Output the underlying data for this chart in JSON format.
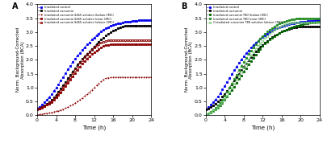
{
  "panel_A": {
    "title": "A",
    "series": [
      {
        "label": "Irradiated control",
        "color": "#0000EE",
        "marker": "s",
        "fillstyle": "full",
        "linestyle": "--",
        "x": [
          0,
          0.5,
          1,
          1.5,
          2,
          2.5,
          3,
          3.5,
          4,
          4.5,
          5,
          5.5,
          6,
          6.5,
          7,
          7.5,
          8,
          8.5,
          9,
          9.5,
          10,
          10.5,
          11,
          11.5,
          12,
          12.5,
          13,
          13.5,
          14,
          14.5,
          15,
          15.5,
          16,
          16.5,
          17,
          17.5,
          18,
          18.5,
          19,
          19.5,
          20,
          20.5,
          21,
          21.5,
          22,
          22.5,
          23,
          23.5,
          24
        ],
        "y": [
          0.25,
          0.3,
          0.38,
          0.46,
          0.55,
          0.65,
          0.75,
          0.87,
          1.0,
          1.12,
          1.25,
          1.38,
          1.52,
          1.65,
          1.78,
          1.92,
          2.05,
          2.15,
          2.25,
          2.35,
          2.45,
          2.55,
          2.63,
          2.72,
          2.8,
          2.88,
          2.95,
          3.02,
          3.08,
          3.14,
          3.18,
          3.22,
          3.26,
          3.28,
          3.3,
          3.32,
          3.34,
          3.36,
          3.37,
          3.38,
          3.4,
          3.4,
          3.41,
          3.42,
          3.42,
          3.43,
          3.43,
          3.43,
          3.44
        ]
      },
      {
        "label": "Irradiated curcumin",
        "color": "#000000",
        "marker": "s",
        "fillstyle": "full",
        "linestyle": "--",
        "x": [
          0,
          0.5,
          1,
          1.5,
          2,
          2.5,
          3,
          3.5,
          4,
          4.5,
          5,
          5.5,
          6,
          6.5,
          7,
          7.5,
          8,
          8.5,
          9,
          9.5,
          10,
          10.5,
          11,
          11.5,
          12,
          12.5,
          13,
          13.5,
          14,
          14.5,
          15,
          15.5,
          16,
          16.5,
          17,
          17.5,
          18,
          18.5,
          19,
          19.5,
          20,
          20.5,
          21,
          21.5,
          22,
          22.5,
          23,
          23.5,
          24
        ],
        "y": [
          0.22,
          0.25,
          0.29,
          0.34,
          0.4,
          0.47,
          0.55,
          0.64,
          0.74,
          0.85,
          0.97,
          1.09,
          1.2,
          1.33,
          1.46,
          1.58,
          1.7,
          1.82,
          1.93,
          2.03,
          2.13,
          2.22,
          2.3,
          2.4,
          2.48,
          2.57,
          2.65,
          2.73,
          2.8,
          2.87,
          2.93,
          2.99,
          3.04,
          3.09,
          3.14,
          3.17,
          3.2,
          3.22,
          3.24,
          3.24,
          3.24,
          3.24,
          3.24,
          3.24,
          3.24,
          3.24,
          3.24,
          3.24,
          3.24
        ]
      },
      {
        "label": "Irradiated curcumin S465 solution (below CMC)",
        "color": "#8B0000",
        "marker": "+",
        "fillstyle": "full",
        "linestyle": "--",
        "x": [
          0,
          0.5,
          1,
          1.5,
          2,
          2.5,
          3,
          3.5,
          4,
          4.5,
          5,
          5.5,
          6,
          6.5,
          7,
          7.5,
          8,
          8.5,
          9,
          9.5,
          10,
          10.5,
          11,
          11.5,
          12,
          12.5,
          13,
          13.5,
          14,
          14.5,
          15,
          15.5,
          16,
          16.5,
          17,
          17.5,
          18,
          18.5,
          19,
          19.5,
          20,
          20.5,
          21,
          21.5,
          22,
          22.5,
          23,
          23.5,
          24
        ],
        "y": [
          0.02,
          0.03,
          0.04,
          0.05,
          0.07,
          0.08,
          0.1,
          0.12,
          0.14,
          0.16,
          0.19,
          0.22,
          0.26,
          0.3,
          0.34,
          0.39,
          0.44,
          0.5,
          0.56,
          0.62,
          0.69,
          0.76,
          0.83,
          0.91,
          0.99,
          1.07,
          1.15,
          1.22,
          1.29,
          1.33,
          1.35,
          1.36,
          1.37,
          1.37,
          1.37,
          1.37,
          1.37,
          1.37,
          1.37,
          1.37,
          1.37,
          1.37,
          1.37,
          1.37,
          1.37,
          1.37,
          1.37,
          1.37,
          1.37
        ]
      },
      {
        "label": "Irradiated curcumin S465 solution (near CMC)",
        "color": "#8B0000",
        "marker": "s",
        "fillstyle": "full",
        "linestyle": "--",
        "x": [
          0,
          0.5,
          1,
          1.5,
          2,
          2.5,
          3,
          3.5,
          4,
          4.5,
          5,
          5.5,
          6,
          6.5,
          7,
          7.5,
          8,
          8.5,
          9,
          9.5,
          10,
          10.5,
          11,
          11.5,
          12,
          12.5,
          13,
          13.5,
          14,
          14.5,
          15,
          15.5,
          16,
          16.5,
          17,
          17.5,
          18,
          18.5,
          19,
          19.5,
          20,
          20.5,
          21,
          21.5,
          22,
          22.5,
          23,
          23.5,
          24
        ],
        "y": [
          0.22,
          0.25,
          0.28,
          0.32,
          0.37,
          0.42,
          0.48,
          0.55,
          0.63,
          0.72,
          0.82,
          0.93,
          1.04,
          1.16,
          1.28,
          1.4,
          1.52,
          1.63,
          1.75,
          1.85,
          1.95,
          2.04,
          2.12,
          2.2,
          2.27,
          2.34,
          2.4,
          2.45,
          2.49,
          2.52,
          2.54,
          2.55,
          2.56,
          2.56,
          2.57,
          2.57,
          2.57,
          2.57,
          2.57,
          2.57,
          2.57,
          2.57,
          2.57,
          2.57,
          2.57,
          2.57,
          2.57,
          2.57,
          2.57
        ]
      },
      {
        "label": "Irradiated curcumin S465 solution (above CMC)",
        "color": "#8B0000",
        "marker": "s",
        "fillstyle": "none",
        "linestyle": "--",
        "x": [
          0,
          0.5,
          1,
          1.5,
          2,
          2.5,
          3,
          3.5,
          4,
          4.5,
          5,
          5.5,
          6,
          6.5,
          7,
          7.5,
          8,
          8.5,
          9,
          9.5,
          10,
          10.5,
          11,
          11.5,
          12,
          12.5,
          13,
          13.5,
          14,
          14.5,
          15,
          15.5,
          16,
          16.5,
          17,
          17.5,
          18,
          18.5,
          19,
          19.5,
          20,
          20.5,
          21,
          21.5,
          22,
          22.5,
          23,
          23.5,
          24
        ],
        "y": [
          0.22,
          0.25,
          0.29,
          0.33,
          0.38,
          0.44,
          0.51,
          0.59,
          0.68,
          0.78,
          0.89,
          1.01,
          1.13,
          1.25,
          1.38,
          1.51,
          1.64,
          1.76,
          1.88,
          1.99,
          2.1,
          2.19,
          2.28,
          2.37,
          2.44,
          2.51,
          2.57,
          2.62,
          2.66,
          2.68,
          2.7,
          2.71,
          2.71,
          2.71,
          2.71,
          2.71,
          2.71,
          2.71,
          2.71,
          2.71,
          2.71,
          2.71,
          2.71,
          2.71,
          2.71,
          2.71,
          2.71,
          2.71,
          2.71
        ]
      }
    ],
    "xlabel": "Time (h)",
    "ylabel": "Norm. Background-Corrected\nAbsorption (BCA)",
    "xlim": [
      0,
      24
    ],
    "ylim": [
      0,
      4
    ],
    "xticks": [
      0,
      4,
      8,
      12,
      16,
      20,
      24
    ],
    "yticks": [
      0,
      0.5,
      1.0,
      1.5,
      2.0,
      2.5,
      3.0,
      3.5,
      4.0
    ]
  },
  "panel_B": {
    "title": "B",
    "series": [
      {
        "label": "Irradiated control",
        "color": "#0000EE",
        "marker": "s",
        "fillstyle": "full",
        "linestyle": "--",
        "x": [
          0,
          0.5,
          1,
          1.5,
          2,
          2.5,
          3,
          3.5,
          4,
          4.5,
          5,
          5.5,
          6,
          6.5,
          7,
          7.5,
          8,
          8.5,
          9,
          9.5,
          10,
          10.5,
          11,
          11.5,
          12,
          12.5,
          13,
          13.5,
          14,
          14.5,
          15,
          15.5,
          16,
          16.5,
          17,
          17.5,
          18,
          18.5,
          19,
          19.5,
          20,
          20.5,
          21,
          21.5,
          22,
          22.5,
          23,
          23.5,
          24
        ],
        "y": [
          0.22,
          0.29,
          0.37,
          0.46,
          0.56,
          0.67,
          0.79,
          0.92,
          1.06,
          1.2,
          1.34,
          1.48,
          1.62,
          1.76,
          1.89,
          2.01,
          2.13,
          2.24,
          2.34,
          2.44,
          2.53,
          2.61,
          2.69,
          2.76,
          2.83,
          2.89,
          2.95,
          3.0,
          3.05,
          3.1,
          3.14,
          3.17,
          3.21,
          3.24,
          3.26,
          3.28,
          3.3,
          3.32,
          3.34,
          3.35,
          3.36,
          3.37,
          3.38,
          3.39,
          3.4,
          3.41,
          3.42,
          3.42,
          3.42
        ]
      },
      {
        "label": "Irradiated curcumin",
        "color": "#000000",
        "marker": "s",
        "fillstyle": "full",
        "linestyle": "--",
        "x": [
          0,
          0.5,
          1,
          1.5,
          2,
          2.5,
          3,
          3.5,
          4,
          4.5,
          5,
          5.5,
          6,
          6.5,
          7,
          7.5,
          8,
          8.5,
          9,
          9.5,
          10,
          10.5,
          11,
          11.5,
          12,
          12.5,
          13,
          13.5,
          14,
          14.5,
          15,
          15.5,
          16,
          16.5,
          17,
          17.5,
          18,
          18.5,
          19,
          19.5,
          20,
          20.5,
          21,
          21.5,
          22,
          22.5,
          23,
          23.5,
          24
        ],
        "y": [
          0.2,
          0.24,
          0.29,
          0.35,
          0.41,
          0.49,
          0.57,
          0.67,
          0.77,
          0.88,
          1.0,
          1.12,
          1.24,
          1.37,
          1.5,
          1.62,
          1.75,
          1.87,
          1.98,
          2.09,
          2.19,
          2.29,
          2.38,
          2.46,
          2.54,
          2.62,
          2.69,
          2.75,
          2.81,
          2.87,
          2.92,
          2.97,
          3.01,
          3.05,
          3.08,
          3.11,
          3.14,
          3.16,
          3.18,
          3.19,
          3.2,
          3.2,
          3.2,
          3.2,
          3.2,
          3.2,
          3.2,
          3.2,
          3.2
        ]
      },
      {
        "label": "Irradiated curcumin T80 (below CMC)",
        "color": "#006400",
        "marker": "s",
        "fillstyle": "full",
        "linestyle": "--",
        "x": [
          0,
          0.5,
          1,
          1.5,
          2,
          2.5,
          3,
          3.5,
          4,
          4.5,
          5,
          5.5,
          6,
          6.5,
          7,
          7.5,
          8,
          8.5,
          9,
          9.5,
          10,
          10.5,
          11,
          11.5,
          12,
          12.5,
          13,
          13.5,
          14,
          14.5,
          15,
          15.5,
          16,
          16.5,
          17,
          17.5,
          18,
          18.5,
          19,
          19.5,
          20,
          20.5,
          21,
          21.5,
          22,
          22.5,
          23,
          23.5,
          24
        ],
        "y": [
          0.03,
          0.06,
          0.1,
          0.15,
          0.21,
          0.28,
          0.36,
          0.45,
          0.55,
          0.66,
          0.78,
          0.9,
          1.03,
          1.16,
          1.3,
          1.43,
          1.57,
          1.7,
          1.83,
          1.96,
          2.08,
          2.19,
          2.3,
          2.4,
          2.49,
          2.58,
          2.66,
          2.73,
          2.8,
          2.86,
          2.91,
          2.96,
          3.01,
          3.05,
          3.09,
          3.13,
          3.16,
          3.19,
          3.22,
          3.24,
          3.26,
          3.28,
          3.3,
          3.31,
          3.33,
          3.34,
          3.35,
          3.36,
          3.37
        ]
      },
      {
        "label": "Irradiated curcumin T80 (near CMC)",
        "color": "#228B22",
        "marker": "s",
        "fillstyle": "full",
        "linestyle": "--",
        "x": [
          0,
          0.5,
          1,
          1.5,
          2,
          2.5,
          3,
          3.5,
          4,
          4.5,
          5,
          5.5,
          6,
          6.5,
          7,
          7.5,
          8,
          8.5,
          9,
          9.5,
          10,
          10.5,
          11,
          11.5,
          12,
          12.5,
          13,
          13.5,
          14,
          14.5,
          15,
          15.5,
          16,
          16.5,
          17,
          17.5,
          18,
          18.5,
          19,
          19.5,
          20,
          20.5,
          21,
          21.5,
          22,
          22.5,
          23,
          23.5,
          24
        ],
        "y": [
          0.03,
          0.07,
          0.12,
          0.18,
          0.26,
          0.35,
          0.45,
          0.57,
          0.7,
          0.84,
          0.99,
          1.14,
          1.3,
          1.46,
          1.62,
          1.77,
          1.92,
          2.06,
          2.2,
          2.33,
          2.45,
          2.56,
          2.67,
          2.77,
          2.86,
          2.94,
          3.02,
          3.09,
          3.15,
          3.21,
          3.26,
          3.31,
          3.35,
          3.38,
          3.41,
          3.43,
          3.45,
          3.47,
          3.48,
          3.49,
          3.5,
          3.5,
          3.5,
          3.5,
          3.5,
          3.5,
          3.5,
          3.5,
          3.5
        ]
      },
      {
        "label": "Cirradiated curcumin T80 solution (above CMC)",
        "color": "#7CCD7C",
        "marker": "o",
        "fillstyle": "none",
        "linestyle": "--",
        "x": [
          0,
          0.5,
          1,
          1.5,
          2,
          2.5,
          3,
          3.5,
          4,
          4.5,
          5,
          5.5,
          6,
          6.5,
          7,
          7.5,
          8,
          8.5,
          9,
          9.5,
          10,
          10.5,
          11,
          11.5,
          12,
          12.5,
          13,
          13.5,
          14,
          14.5,
          15,
          15.5,
          16,
          16.5,
          17,
          17.5,
          18,
          18.5,
          19,
          19.5,
          20,
          20.5,
          21,
          21.5,
          22,
          22.5,
          23,
          23.5,
          24
        ],
        "y": [
          0.03,
          0.06,
          0.1,
          0.15,
          0.21,
          0.28,
          0.37,
          0.47,
          0.58,
          0.71,
          0.84,
          0.98,
          1.13,
          1.28,
          1.43,
          1.58,
          1.73,
          1.87,
          2.01,
          2.14,
          2.26,
          2.38,
          2.49,
          2.59,
          2.69,
          2.78,
          2.86,
          2.94,
          3.01,
          3.07,
          3.13,
          3.18,
          3.22,
          3.26,
          3.29,
          3.31,
          3.33,
          3.34,
          3.35,
          3.35,
          3.35,
          3.35,
          3.35,
          3.35,
          3.35,
          3.35,
          3.35,
          3.35,
          3.35
        ]
      }
    ],
    "xlabel": "Time (h)",
    "ylabel": "Norm. Background-Corrected\nAbsorption (BCA)",
    "xlim": [
      0,
      24
    ],
    "ylim": [
      0,
      4
    ],
    "xticks": [
      0,
      4,
      8,
      12,
      16,
      20,
      24
    ],
    "yticks": [
      0,
      0.5,
      1.0,
      1.5,
      2.0,
      2.5,
      3.0,
      3.5,
      4.0
    ]
  },
  "fig_width": 4.0,
  "fig_height": 1.79,
  "dpi": 100
}
